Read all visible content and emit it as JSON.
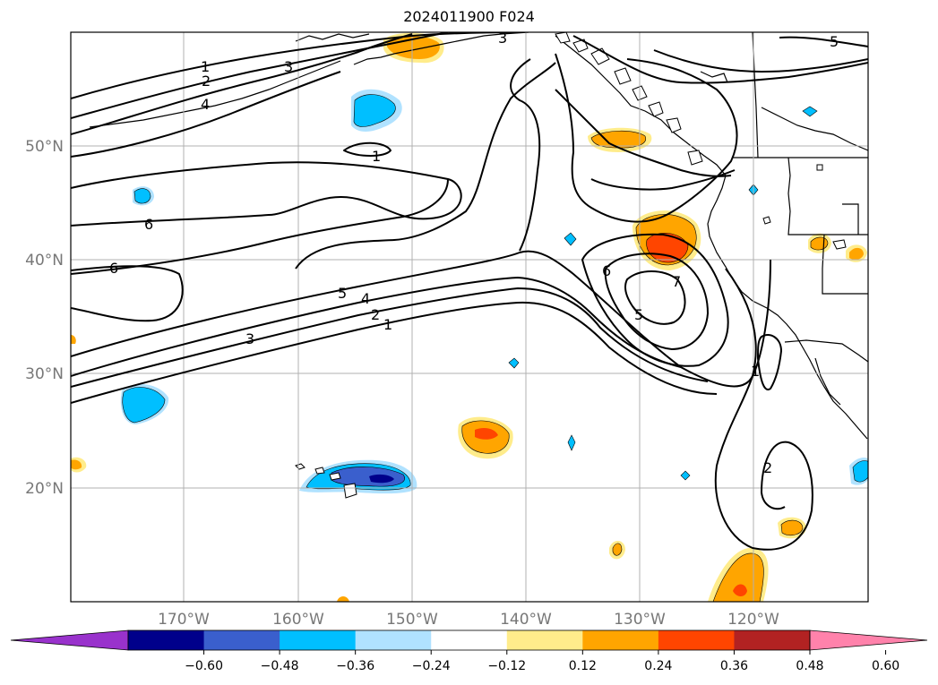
{
  "title": "2024011900 F024",
  "lat_labels": [
    "50°N",
    "40°N",
    "30°N",
    "20°N"
  ],
  "lon_labels": [
    "170°W",
    "160°W",
    "150°W",
    "140°W",
    "130°W",
    "120°W"
  ],
  "colorbar": {
    "ticks": [
      "−0.60",
      "−0.48",
      "−0.36",
      "−0.24",
      "−0.12",
      "0.12",
      "0.24",
      "0.36",
      "0.48",
      "0.60"
    ],
    "colors": [
      "#9932cc",
      "#00008b",
      "#3a5fcd",
      "#00bfff",
      "#b0e2ff",
      "#ffffff",
      "#ffec8b",
      "#ffa500",
      "#ff4500",
      "#b22222",
      "#ff82ab"
    ]
  },
  "contour_labels": {
    "c1a": "1",
    "c2a": "2",
    "c3a": "3",
    "c4a": "4",
    "c3top": "3",
    "c5ne": "5",
    "c1mid": "1",
    "c6a": "6",
    "c6b": "6",
    "c5b": "5",
    "c4b": "4",
    "c2b": "2",
    "c1b": "1",
    "c3b": "3",
    "c6c": "6",
    "c7": "7",
    "c5c": "5",
    "c1c": "1",
    "c2c": "2"
  }
}
